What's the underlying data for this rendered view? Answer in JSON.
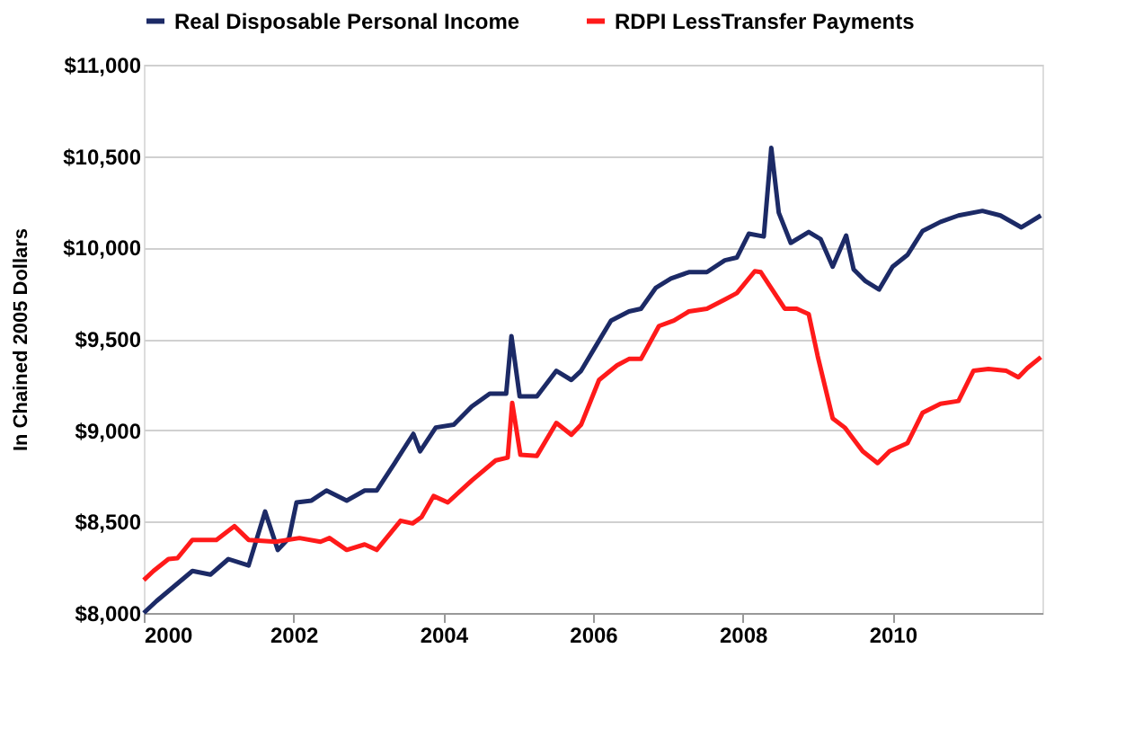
{
  "chart_data": {
    "type": "line",
    "ylabel": "In Chained 2005 Dollars",
    "xlim": [
      2000,
      2012
    ],
    "xticks": [
      2000,
      2002,
      2004,
      2006,
      2008,
      2010
    ],
    "ylim": [
      8000,
      11000
    ],
    "yticks": [
      {
        "value": 8000,
        "label": "$8,000"
      },
      {
        "value": 8500,
        "label": "$8,500"
      },
      {
        "value": 9000,
        "label": "$9,000"
      },
      {
        "value": 9500,
        "label": "$9,500"
      },
      {
        "value": 10000,
        "label": "$10,000"
      },
      {
        "value": 10500,
        "label": "$10,500"
      },
      {
        "value": 11000,
        "label": "$11,000"
      }
    ],
    "grid": "y",
    "legend": "top",
    "marker": "none",
    "line_style": "solid",
    "series": [
      {
        "name": "Real Disposable Personal Income",
        "color": "#1c2a66",
        "x": [
          2000.0,
          2000.17,
          2000.65,
          2000.89,
          2001.13,
          2001.4,
          2001.62,
          2001.79,
          2001.94,
          2002.04,
          2002.24,
          2002.44,
          2002.71,
          2002.95,
          2003.11,
          2003.35,
          2003.6,
          2003.69,
          2003.9,
          2004.14,
          2004.38,
          2004.62,
          2004.84,
          2004.91,
          2005.02,
          2005.25,
          2005.51,
          2005.71,
          2005.84,
          2006.05,
          2006.24,
          2006.48,
          2006.64,
          2006.84,
          2007.04,
          2007.28,
          2007.52,
          2007.76,
          2007.92,
          2008.08,
          2008.28,
          2008.38,
          2008.48,
          2008.64,
          2008.88,
          2009.04,
          2009.2,
          2009.38,
          2009.48,
          2009.64,
          2009.82,
          2010.0,
          2010.2,
          2010.4,
          2010.64,
          2010.88,
          2011.2,
          2011.44,
          2011.72,
          2011.84,
          2011.98
        ],
        "values": [
          8000,
          8065,
          8230,
          8210,
          8295,
          8260,
          8555,
          8345,
          8410,
          8605,
          8615,
          8670,
          8615,
          8670,
          8670,
          8820,
          8980,
          8885,
          9015,
          9030,
          9130,
          9200,
          9200,
          9515,
          9185,
          9185,
          9325,
          9275,
          9325,
          9470,
          9600,
          9650,
          9665,
          9780,
          9830,
          9865,
          9865,
          9930,
          9945,
          10075,
          10060,
          10545,
          10190,
          10025,
          10085,
          10045,
          9895,
          10065,
          9880,
          9815,
          9770,
          9895,
          9960,
          10090,
          10140,
          10175,
          10200,
          10175,
          10110,
          10140,
          10175
        ]
      },
      {
        "name": "RDPI LessTransfer Payments",
        "color": "#ff1a1a",
        "x": [
          2000.0,
          2000.13,
          2000.33,
          2000.45,
          2000.65,
          2000.97,
          2001.21,
          2001.4,
          2001.76,
          2002.08,
          2002.36,
          2002.48,
          2002.71,
          2002.95,
          2003.11,
          2003.43,
          2003.59,
          2003.71,
          2003.87,
          2004.06,
          2004.38,
          2004.7,
          2004.86,
          2004.92,
          2005.03,
          2005.25,
          2005.51,
          2005.71,
          2005.84,
          2006.08,
          2006.32,
          2006.48,
          2006.64,
          2006.88,
          2007.08,
          2007.28,
          2007.52,
          2007.76,
          2007.92,
          2008.16,
          2008.24,
          2008.56,
          2008.72,
          2008.88,
          2009.0,
          2009.2,
          2009.36,
          2009.6,
          2009.8,
          2009.96,
          2010.2,
          2010.4,
          2010.64,
          2010.88,
          2011.08,
          2011.28,
          2011.52,
          2011.68,
          2011.8,
          2011.98
        ],
        "values": [
          8180,
          8230,
          8295,
          8300,
          8400,
          8400,
          8475,
          8400,
          8390,
          8410,
          8390,
          8410,
          8345,
          8375,
          8345,
          8505,
          8490,
          8525,
          8640,
          8605,
          8725,
          8835,
          8850,
          9150,
          8865,
          8860,
          9040,
          8975,
          9030,
          9275,
          9355,
          9390,
          9390,
          9570,
          9600,
          9650,
          9665,
          9715,
          9750,
          9870,
          9865,
          9665,
          9665,
          9635,
          9405,
          9065,
          9015,
          8885,
          8820,
          8885,
          8930,
          9095,
          9145,
          9160,
          9325,
          9335,
          9325,
          9290,
          9340,
          9400
        ]
      }
    ]
  }
}
